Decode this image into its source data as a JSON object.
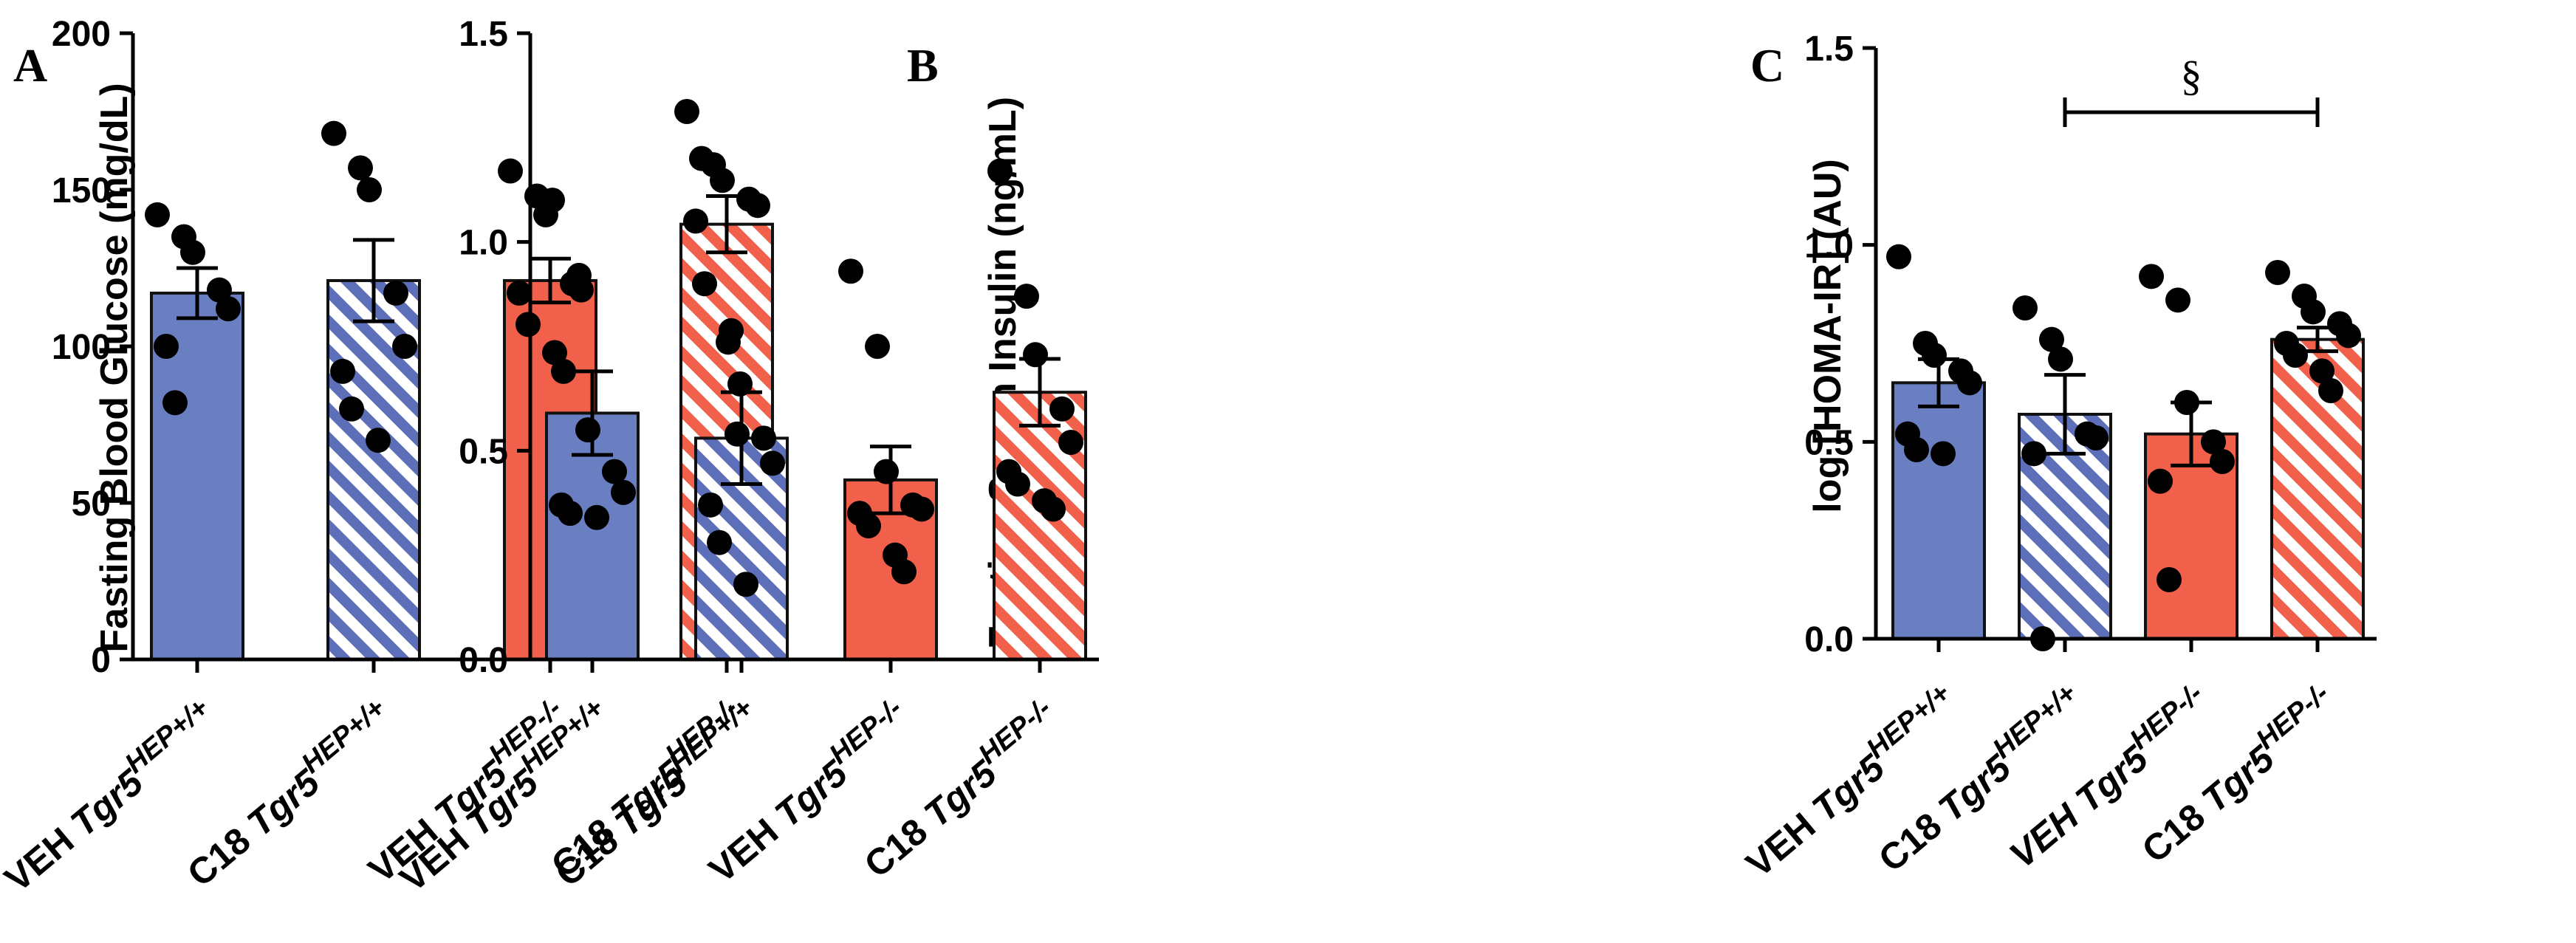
{
  "colors": {
    "veh_wt": "#6a7fc1",
    "c18_wt_stripe": "#5c6fb8",
    "veh_ko": "#f1604a",
    "c18_ko_stripe": "#f1604a"
  },
  "chart_data": [
    {
      "type": "bar",
      "panel": "A",
      "title": "",
      "ylabel": "Fasting Blood Glucose (mg/dL)",
      "ylim": [
        0,
        200
      ],
      "yticks": [
        "0",
        "50",
        "100",
        "150",
        "200"
      ],
      "categories": [
        {
          "prefix": "VEH ",
          "gene": "Tgr5",
          "sup": "HEP+/+"
        },
        {
          "prefix": "C18 ",
          "gene": "Tgr5",
          "sup": "HEP+/+"
        },
        {
          "prefix": "VEH ",
          "gene": "Tgr5",
          "sup": "HEP-/-"
        },
        {
          "prefix": "C18 ",
          "gene": "Tgr5",
          "sup": "HEP-/-"
        }
      ],
      "values": [
        117,
        121,
        121,
        139
      ],
      "sem": [
        8,
        13,
        7,
        9
      ],
      "points": [
        [
          142,
          135,
          130,
          118,
          112,
          100,
          82
        ],
        [
          168,
          157,
          150,
          117,
          100,
          92,
          80,
          70
        ],
        [
          156,
          148,
          142,
          120,
          118,
          117,
          107,
          98,
          92
        ],
        [
          175,
          158,
          153,
          147,
          145,
          140,
          120,
          105,
          88
        ]
      ],
      "significance": null
    },
    {
      "type": "bar",
      "panel": "B",
      "title": "",
      "ylabel": "Fasting Serum Insulin (ng/mL)",
      "ylim": [
        0,
        1.5
      ],
      "yticks": [
        "0.0",
        "0.5",
        "1.0",
        "1.5"
      ],
      "categories": [
        {
          "prefix": "VEH ",
          "gene": "Tgr5",
          "sup": "HEP+/+"
        },
        {
          "prefix": "C18 ",
          "gene": "Tgr5",
          "sup": "HEP+/+"
        },
        {
          "prefix": "VEH ",
          "gene": "Tgr5",
          "sup": "HEP-/-"
        },
        {
          "prefix": "C18 ",
          "gene": "Tgr5",
          "sup": "HEP-/-"
        }
      ],
      "values": [
        0.59,
        0.53,
        0.43,
        0.64
      ],
      "sem": [
        0.1,
        0.11,
        0.08,
        0.08
      ],
      "points": [
        [
          1.1,
          0.92,
          0.55,
          0.45,
          0.4,
          0.37,
          0.35,
          0.34
        ],
        [
          1.2,
          0.76,
          0.54,
          0.53,
          0.47,
          0.37,
          0.28,
          0.18
        ],
        [
          0.93,
          0.75,
          0.45,
          0.37,
          0.36,
          0.35,
          0.32,
          0.25,
          0.21
        ],
        [
          1.17,
          0.87,
          0.73,
          0.6,
          0.52,
          0.45,
          0.42,
          0.38,
          0.36
        ]
      ],
      "significance": null
    },
    {
      "type": "bar",
      "panel": "C",
      "title": "",
      "ylabel": "log [HOMA-IR] (AU)",
      "ylim": [
        0,
        1.5
      ],
      "yticks": [
        "0.0",
        "0.5",
        "1.0",
        "1.5"
      ],
      "categories": [
        {
          "prefix": "VEH ",
          "gene": "Tgr5",
          "sup": "HEP+/+"
        },
        {
          "prefix": "C18 ",
          "gene": "Tgr5",
          "sup": "HEP+/+"
        },
        {
          "prefix": "VEH ",
          "gene": "Tgr5",
          "sup": "HEP-/-",
          "all_italic": true
        },
        {
          "prefix": "C18 ",
          "gene": "Tgr5",
          "sup": "HEP-/-"
        }
      ],
      "values": [
        0.65,
        0.57,
        0.52,
        0.76
      ],
      "sem": [
        0.06,
        0.1,
        0.08,
        0.03
      ],
      "points": [
        [
          0.97,
          0.75,
          0.72,
          0.68,
          0.65,
          0.52,
          0.48,
          0.47
        ],
        [
          0.84,
          0.76,
          0.71,
          0.52,
          0.51,
          0.47,
          0.0
        ],
        [
          0.92,
          0.86,
          0.6,
          0.5,
          0.45,
          0.4,
          0.15
        ],
        [
          0.93,
          0.87,
          0.83,
          0.8,
          0.77,
          0.75,
          0.72,
          0.68,
          0.63
        ]
      ],
      "significance": {
        "from": 1,
        "to": 3,
        "symbol": "§"
      }
    }
  ]
}
